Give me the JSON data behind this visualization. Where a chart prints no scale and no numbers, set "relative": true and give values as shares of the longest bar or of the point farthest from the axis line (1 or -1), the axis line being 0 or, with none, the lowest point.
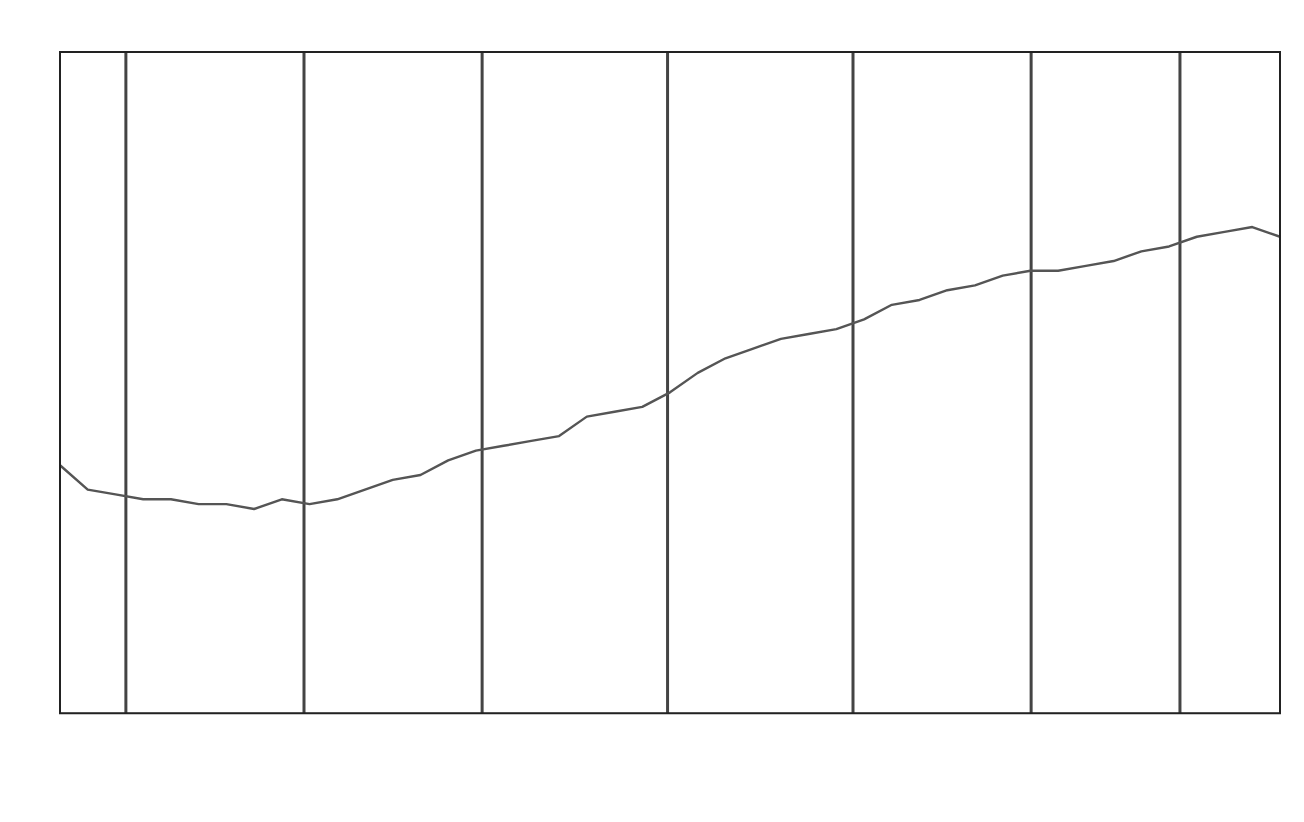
{
  "chart_data": {
    "type": "line",
    "relative": true,
    "categories": [
      null,
      null,
      null,
      null,
      null,
      null,
      null,
      null,
      null,
      null,
      null,
      null,
      null,
      null,
      null,
      null,
      null,
      null,
      null,
      null,
      null,
      null,
      null,
      null,
      null,
      null,
      null,
      null,
      null,
      null,
      null,
      null,
      null,
      null,
      null,
      null,
      null,
      null,
      null,
      null,
      null,
      null,
      null,
      null,
      null
    ],
    "series": [
      {
        "color": "#555555",
        "values": [
          0.51,
          0.46,
          0.45,
          0.44,
          0.44,
          0.43,
          0.43,
          0.42,
          0.44,
          0.43,
          0.44,
          0.46,
          0.48,
          0.49,
          0.52,
          0.54,
          0.55,
          0.56,
          0.57,
          0.61,
          0.62,
          0.63,
          0.66,
          0.7,
          0.73,
          0.75,
          0.77,
          0.78,
          0.79,
          0.81,
          0.84,
          0.85,
          0.87,
          0.88,
          0.9,
          0.91,
          0.91,
          0.92,
          0.93,
          0.95,
          0.96,
          0.98,
          0.99,
          1,
          0.98
        ]
      }
    ],
    "grid": false,
    "legend": false,
    "marker": "none",
    "line_style": "solid"
  }
}
